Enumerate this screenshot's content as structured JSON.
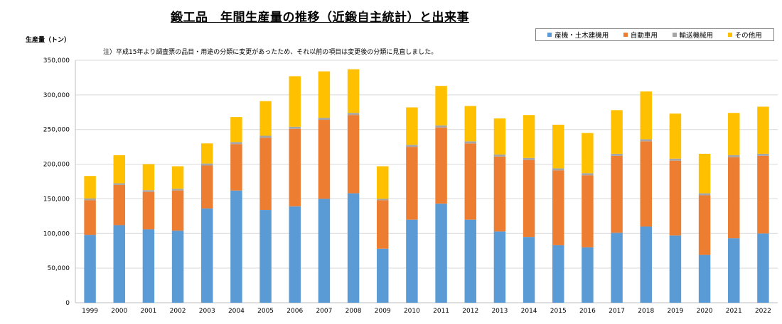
{
  "title": "鍛工品　年間生産量の推移（近鍛自主統計）と出来事",
  "ylabel": "生産量（トン）",
  "note": "注）平成15年より調査票の品目・用途の分類に変更があったため、それ以前の項目は変更後の分類に見直しました。",
  "chart_data": {
    "type": "bar",
    "stacked": true,
    "categories": [
      "1999",
      "2000",
      "2001",
      "2002",
      "2003",
      "2004",
      "2005",
      "2006",
      "2007",
      "2008",
      "2009",
      "2010",
      "2011",
      "2012",
      "2013",
      "2014",
      "2015",
      "2016",
      "2017",
      "2018",
      "2019",
      "2020",
      "2021",
      "2022"
    ],
    "ylim": [
      0,
      350000
    ],
    "yticks": [
      0,
      50000,
      100000,
      150000,
      200000,
      250000,
      300000,
      350000
    ],
    "ytick_labels": [
      "0",
      "50,000",
      "100,000",
      "150,000",
      "200,000",
      "250,000",
      "300,000",
      "350,000"
    ],
    "grid": true,
    "legend_position": "top-right",
    "series": [
      {
        "name": "産機・土木建機用",
        "color": "#5b9bd5",
        "values": [
          98000,
          112000,
          106000,
          104000,
          136000,
          162000,
          134000,
          139000,
          150000,
          158000,
          78000,
          120000,
          143000,
          120000,
          103000,
          95000,
          83000,
          80000,
          101000,
          110000,
          97000,
          69000,
          93000,
          100000
        ]
      },
      {
        "name": "自動車用",
        "color": "#ed7d31",
        "values": [
          50000,
          58000,
          54000,
          58000,
          62000,
          67000,
          104000,
          112000,
          114000,
          113000,
          70000,
          105000,
          110000,
          110000,
          108000,
          111000,
          108000,
          104000,
          111000,
          123000,
          108000,
          86000,
          117000,
          112000
        ]
      },
      {
        "name": "輸送機械用",
        "color": "#a5a5a5",
        "values": [
          2500,
          2500,
          2500,
          2500,
          3000,
          3000,
          3000,
          3000,
          3000,
          3000,
          2000,
          3000,
          3000,
          3000,
          3000,
          3000,
          3000,
          3000,
          3000,
          3000,
          3000,
          3000,
          3000,
          3000
        ]
      },
      {
        "name": "その他用",
        "color": "#ffc000",
        "values": [
          32500,
          40500,
          37500,
          32500,
          29000,
          36000,
          50000,
          73000,
          67000,
          63000,
          47000,
          54000,
          57000,
          51000,
          52000,
          62000,
          63000,
          58000,
          63000,
          69000,
          65000,
          57000,
          61000,
          68000
        ]
      }
    ]
  }
}
